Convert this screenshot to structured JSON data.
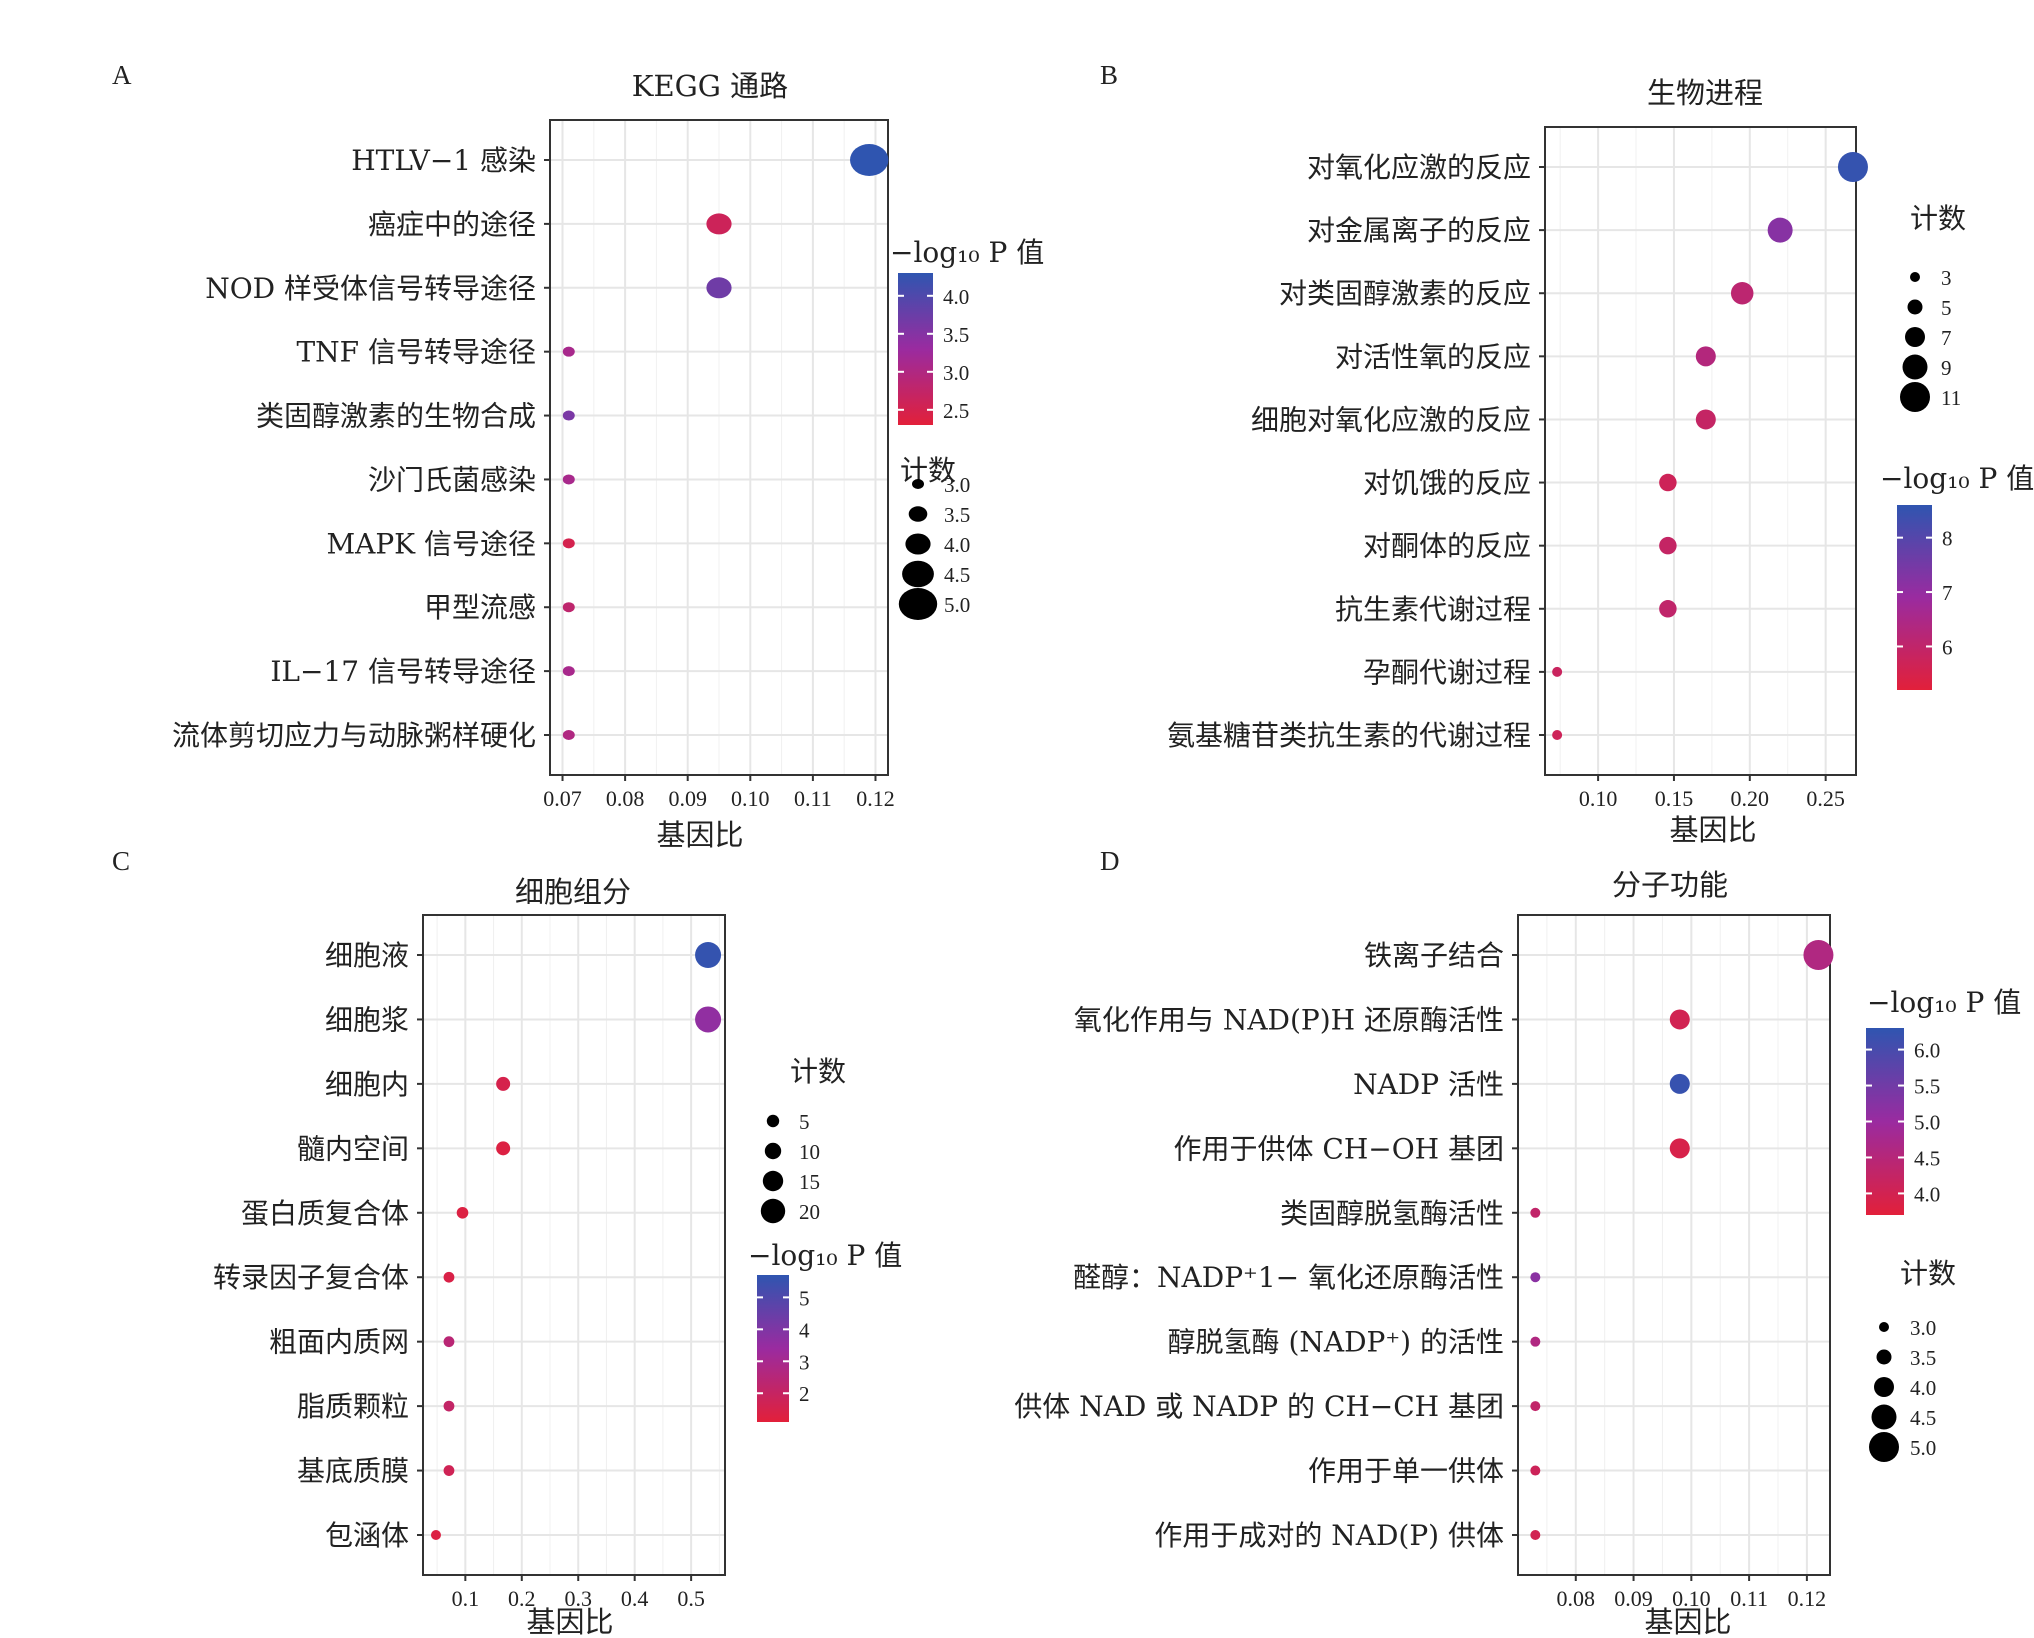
{
  "chart_data": [
    {
      "panel": "A",
      "type": "scatter",
      "title": "KEGG 通路",
      "xlabel": "基因比",
      "xlim": [
        0.068,
        0.122
      ],
      "xticks": [
        0.07,
        0.08,
        0.09,
        0.1,
        0.11,
        0.12
      ],
      "xtick_labels": [
        "0.07",
        "0.08",
        "0.09",
        "0.10",
        "0.11",
        "0.12"
      ],
      "categories": [
        "HTLV−1 感染",
        "癌症中的途径",
        "NOD 样受体信号转导途径",
        "TNF 信号转导途径",
        "类固醇激素的生物合成",
        "沙门氏菌感染",
        "MAPK 信号途径",
        "甲型流感",
        "IL−17 信号转导途径",
        "流体剪切应力与动脉粥样硬化"
      ],
      "gene_ratio": [
        0.119,
        0.095,
        0.095,
        0.071,
        0.071,
        0.071,
        0.071,
        0.071,
        0.071,
        0.071
      ],
      "count": [
        5,
        4,
        4,
        3,
        3,
        3,
        3,
        3,
        3,
        3
      ],
      "neg_log10_p": [
        4.3,
        2.6,
        3.7,
        3.1,
        3.6,
        3.1,
        2.5,
        2.8,
        3.1,
        3.0
      ],
      "color_legend": {
        "title": "−log₁₀ P 值",
        "min": 2.3,
        "max": 4.3,
        "ticks": [
          4.0,
          3.5,
          3.0,
          2.5
        ],
        "tick_labels": [
          "4.0",
          "3.5",
          "3.0",
          "2.5"
        ]
      },
      "size_legend": {
        "title": "计数",
        "min": 3,
        "max": 5,
        "values": [
          3.0,
          3.5,
          4.0,
          4.5,
          5.0
        ],
        "labels": [
          "3.0",
          "3.5",
          "4.0",
          "4.5",
          "5.0"
        ]
      },
      "legend_order": "color-first"
    },
    {
      "panel": "B",
      "type": "scatter",
      "title": "生物进程",
      "xlabel": "基因比",
      "xlim": [
        0.065,
        0.27
      ],
      "xticks": [
        0.1,
        0.15,
        0.2,
        0.25
      ],
      "xtick_labels": [
        "0.10",
        "0.15",
        "0.20",
        "0.25"
      ],
      "categories": [
        "对氧化应激的反应",
        "对金属离子的反应",
        "对类固醇激素的反应",
        "对活性氧的反应",
        "细胞对氧化应激的反应",
        "对饥饿的反应",
        "对酮体的反应",
        "抗生素代谢过程",
        "孕酮代谢过程",
        "氨基糖苷类抗生素的代谢过程"
      ],
      "gene_ratio": [
        0.268,
        0.22,
        0.195,
        0.171,
        0.171,
        0.146,
        0.146,
        0.146,
        0.073,
        0.073
      ],
      "count": [
        11,
        9,
        8,
        7,
        7,
        6,
        6,
        6,
        3,
        3
      ],
      "neg_log10_p": [
        8.5,
        7.2,
        6.1,
        6.3,
        5.9,
        5.7,
        5.9,
        6.0,
        5.8,
        5.7
      ],
      "color_legend": {
        "title": "−log₁₀ P 值",
        "min": 5.2,
        "max": 8.6,
        "ticks": [
          8,
          7,
          6
        ],
        "tick_labels": [
          "8",
          "7",
          "6"
        ]
      },
      "size_legend": {
        "title": "计数",
        "min": 3,
        "max": 11,
        "values": [
          3,
          5,
          7,
          9,
          11
        ],
        "labels": [
          "3",
          "5",
          "7",
          "9",
          "11"
        ]
      },
      "legend_order": "size-first"
    },
    {
      "panel": "C",
      "type": "scatter",
      "title": "细胞组分",
      "xlabel": "基因比",
      "xlim": [
        0.025,
        0.56
      ],
      "xticks": [
        0.1,
        0.2,
        0.3,
        0.4,
        0.5
      ],
      "xtick_labels": [
        "0.1",
        "0.2",
        "0.3",
        "0.4",
        "0.5"
      ],
      "categories": [
        "细胞液",
        "细胞浆",
        "细胞内",
        "髓内空间",
        "蛋白质复合体",
        "转录因子复合体",
        "粗面内质网",
        "脂质颗粒",
        "基底质膜",
        "包涵体"
      ],
      "gene_ratio": [
        0.53,
        0.53,
        0.167,
        0.167,
        0.095,
        0.071,
        0.071,
        0.071,
        0.071,
        0.048
      ],
      "count": [
        22,
        22,
        7,
        7,
        4,
        3,
        3,
        3,
        3,
        2
      ],
      "neg_log10_p": [
        5.6,
        3.6,
        1.5,
        1.3,
        1.3,
        1.4,
        2.4,
        2.1,
        1.7,
        1.3
      ],
      "color_legend": {
        "title": "−log₁₀ P 值",
        "min": 1.1,
        "max": 5.7,
        "ticks": [
          5,
          4,
          3,
          2
        ],
        "tick_labels": [
          "5",
          "4",
          "3",
          "2"
        ]
      },
      "size_legend": {
        "title": "计数",
        "min": 2,
        "max": 22,
        "values": [
          5,
          10,
          15,
          20
        ],
        "labels": [
          "5",
          "10",
          "15",
          "20"
        ]
      },
      "legend_order": "size-first"
    },
    {
      "panel": "D",
      "type": "scatter",
      "title": "分子功能",
      "xlabel": "基因比",
      "xlim": [
        0.07,
        0.124
      ],
      "xticks": [
        0.08,
        0.09,
        0.1,
        0.11,
        0.12
      ],
      "xtick_labels": [
        "0.08",
        "0.09",
        "0.10",
        "0.11",
        "0.12"
      ],
      "categories": [
        "铁离子结合",
        "氧化作用与 NAD(P)H 还原酶活性",
        "NADP 活性",
        "作用于供体 CH−OH 基团",
        "类固醇脱氢酶活性",
        "醛醇：NADP⁺1− 氧化还原酶活性",
        "醇脱氢酶 (NADP⁺) 的活性",
        "供体 NAD 或 NADP 的 CH−CH 基团",
        "作用于单一供体",
        "作用于成对的 NAD(P) 供体"
      ],
      "gene_ratio": [
        0.122,
        0.098,
        0.098,
        0.098,
        0.073,
        0.073,
        0.073,
        0.073,
        0.073,
        0.073
      ],
      "count": [
        5,
        4,
        4,
        4,
        3,
        3,
        3,
        3,
        3,
        3
      ],
      "neg_log10_p": [
        4.6,
        4.0,
        6.2,
        3.9,
        4.3,
        5.2,
        4.6,
        4.3,
        4.1,
        4.0
      ],
      "color_legend": {
        "title": "−log₁₀ P 值",
        "min": 3.7,
        "max": 6.3,
        "ticks": [
          6.0,
          5.5,
          5.0,
          4.5,
          4.0
        ],
        "tick_labels": [
          "6.0",
          "5.5",
          "5.0",
          "4.5",
          "4.0"
        ]
      },
      "size_legend": {
        "title": "计数",
        "min": 3,
        "max": 5,
        "values": [
          3.0,
          3.5,
          4.0,
          4.5,
          5.0
        ],
        "labels": [
          "3.0",
          "3.5",
          "4.0",
          "4.5",
          "5.0"
        ]
      },
      "legend_order": "color-first"
    }
  ],
  "colors": {
    "low": "#e2203a",
    "mid": "#9a2ba0",
    "high": "#2f55b0",
    "grid": "#e6e6e6",
    "frame": "#333333"
  }
}
